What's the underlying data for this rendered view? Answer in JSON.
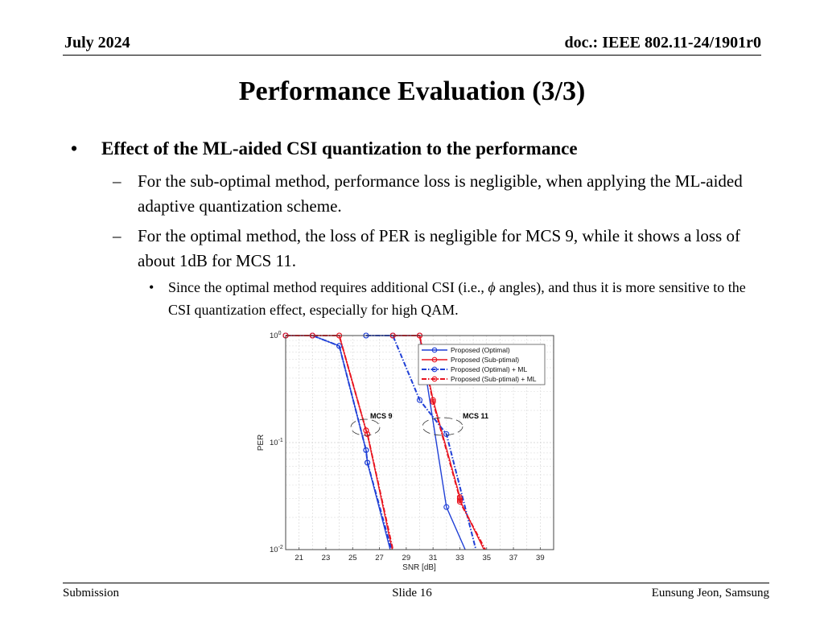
{
  "header": {
    "date": "July 2024",
    "doc": "doc.: IEEE 802.11-24/1901r0"
  },
  "slide_title": "Performance Evaluation (3/3)",
  "bullets": {
    "main": "Effect of the ML-aided CSI quantization to the performance",
    "sub1": "For the sub-optimal method, performance loss is negligible, when applying the ML-aided adaptive quantization scheme.",
    "sub2": "For the optimal method, the loss of PER is negligible for MCS 9, while it shows a loss of about 1dB for MCS 11.",
    "subsub_a": "Since the optimal method requires additional CSI (i.e., ",
    "subsub_phi": "ϕ",
    "subsub_b": " angles), and thus it is more sensitive to the CSI quantization effect, especially for high QAM."
  },
  "footer": {
    "left": "Submission",
    "center": "Slide 16",
    "right": "Eunsung Jeon, Samsung"
  },
  "chart_data": {
    "type": "line",
    "xlabel": "SNR [dB]",
    "ylabel": "PER",
    "yscale": "log",
    "xlim": [
      20,
      40
    ],
    "ylim": [
      0.01,
      1
    ],
    "xticks": [
      21,
      23,
      25,
      27,
      29,
      31,
      33,
      35,
      37,
      39
    ],
    "yticks": [
      {
        "base": "10",
        "exp": "0",
        "value": 1
      },
      {
        "base": "10",
        "exp": "-1",
        "value": 0.1
      },
      {
        "base": "10",
        "exp": "-2",
        "value": 0.01
      }
    ],
    "grid": true,
    "legend_position": "top-right",
    "annotations": [
      "MCS 9",
      "MCS 11"
    ],
    "series": [
      {
        "name": "Proposed (Optimal)",
        "color": "#1f3fd6",
        "style": "solid",
        "marker": "circle",
        "segments": [
          {
            "x": [
              20,
              22,
              24,
              26,
              26.1,
              27.8
            ],
            "y": [
              1,
              1,
              0.8,
              0.085,
              0.065,
              0.01
            ]
          },
          {
            "x": [
              26,
              28,
              30,
              32,
              33.4
            ],
            "y": [
              1,
              1,
              1,
              0.025,
              0.01
            ]
          }
        ]
      },
      {
        "name": "Proposed (Sub-ptimal)",
        "color": "#e8131e",
        "style": "solid",
        "marker": "circle",
        "segments": [
          {
            "x": [
              20,
              22,
              24,
              26,
              26.1,
              27.95
            ],
            "y": [
              1,
              1,
              1,
              0.13,
              0.12,
              0.01
            ]
          },
          {
            "x": [
              28,
              30,
              31,
              33,
              33.0,
              34.8
            ],
            "y": [
              1,
              1,
              0.25,
              0.031,
              0.029,
              0.01
            ]
          }
        ]
      },
      {
        "name": "Proposed (Optimal) + ML",
        "color": "#1f3fd6",
        "style": "dashdot",
        "marker": "circle",
        "segments": [
          {
            "x": [
              20,
              22,
              24,
              26,
              26.1,
              27.9
            ],
            "y": [
              1,
              1,
              0.8,
              0.085,
              0.065,
              0.01
            ]
          },
          {
            "x": [
              26,
              28,
              30,
              32,
              34.2
            ],
            "y": [
              1,
              1,
              0.25,
              0.12,
              0.01
            ]
          }
        ]
      },
      {
        "name": "Proposed (Sub-ptimal) + ML",
        "color": "#e8131e",
        "style": "dashdot",
        "marker": "circle",
        "segments": [
          {
            "x": [
              20,
              22,
              24,
              26,
              26.1,
              28.0
            ],
            "y": [
              1,
              1,
              1,
              0.13,
              0.12,
              0.01
            ]
          },
          {
            "x": [
              28,
              30,
              31,
              33,
              33.0,
              34.9
            ],
            "y": [
              1,
              1,
              0.24,
              0.03,
              0.028,
              0.01
            ]
          }
        ]
      }
    ]
  }
}
